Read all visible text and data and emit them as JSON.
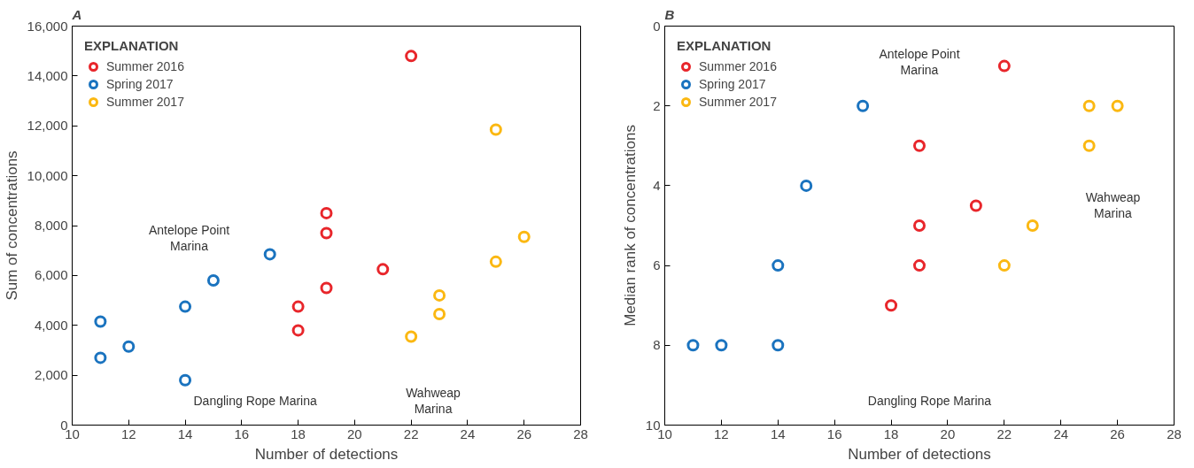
{
  "chart_data": [
    {
      "type": "scatter",
      "title": "A",
      "xlabel": "Number of detections",
      "ylabel": "Sum of concentrations",
      "legend_title": "EXPLANATION",
      "legend": "top left",
      "marker": "circle",
      "grid": false,
      "xlim": [
        10,
        28
      ],
      "xticks": [
        10,
        12,
        14,
        16,
        18,
        20,
        22,
        24,
        26,
        28
      ],
      "ylim": [
        0,
        16000
      ],
      "yticks": [
        0,
        {
          "value": 2000,
          "label": "2,000"
        },
        {
          "value": 4000,
          "label": "4,000"
        },
        {
          "value": 6000,
          "label": "6,000"
        },
        {
          "value": 8000,
          "label": "8,000"
        },
        {
          "value": 10000,
          "label": "10,000"
        },
        {
          "value": 12000,
          "label": "12,000"
        },
        {
          "value": 14000,
          "label": "14,000"
        },
        {
          "value": 16000,
          "label": "16,000"
        }
      ],
      "series": [
        {
          "name": "Summer 2016",
          "color": "#e8262b",
          "x": [
            22,
            19,
            19,
            21,
            19,
            18,
            18
          ],
          "values": [
            14800,
            8500,
            7700,
            6250,
            5500,
            4750,
            3800
          ]
        },
        {
          "name": "Spring 2017",
          "color": "#1a73bf",
          "x": [
            11,
            11,
            12,
            14,
            14,
            15,
            17
          ],
          "values": [
            4150,
            2700,
            3150,
            4750,
            1800,
            5800,
            6850
          ]
        },
        {
          "name": "Summer 2017",
          "color": "#fbb812",
          "x": [
            25,
            26,
            25,
            23,
            23,
            22
          ],
          "values": [
            11850,
            7550,
            6550,
            5200,
            4450,
            3550
          ]
        }
      ],
      "annotations": [
        "Antelope Point\nMarina",
        "Dangling Rope Marina",
        "Wahweap\nMarina"
      ]
    },
    {
      "type": "scatter",
      "title": "B",
      "xlabel": "Number of detections",
      "ylabel": "Median rank of concentrations",
      "legend_title": "EXPLANATION",
      "legend": "top left",
      "marker": "circle",
      "grid": false,
      "xlim": [
        10,
        28
      ],
      "xticks": [
        10,
        12,
        14,
        16,
        18,
        20,
        22,
        24,
        26,
        28
      ],
      "ylim": [
        10,
        0
      ],
      "yticks": [
        0,
        2,
        4,
        6,
        8,
        10
      ],
      "series": [
        {
          "name": "Summer 2016",
          "color": "#e8262b",
          "x": [
            22,
            19,
            21,
            19,
            19,
            18
          ],
          "values": [
            1,
            3,
            4.5,
            5,
            6,
            7
          ]
        },
        {
          "name": "Spring 2017",
          "color": "#1a73bf",
          "x": [
            17,
            15,
            14,
            11,
            12,
            14
          ],
          "values": [
            2,
            4,
            6,
            8,
            8,
            8
          ]
        },
        {
          "name": "Summer 2017",
          "color": "#fbb812",
          "x": [
            25,
            26,
            25,
            23,
            22
          ],
          "values": [
            2,
            2,
            3,
            5,
            6
          ]
        }
      ],
      "annotations": [
        "Antelope Point\nMarina",
        "Wahweap\nMarina",
        "Dangling Rope Marina"
      ]
    }
  ]
}
